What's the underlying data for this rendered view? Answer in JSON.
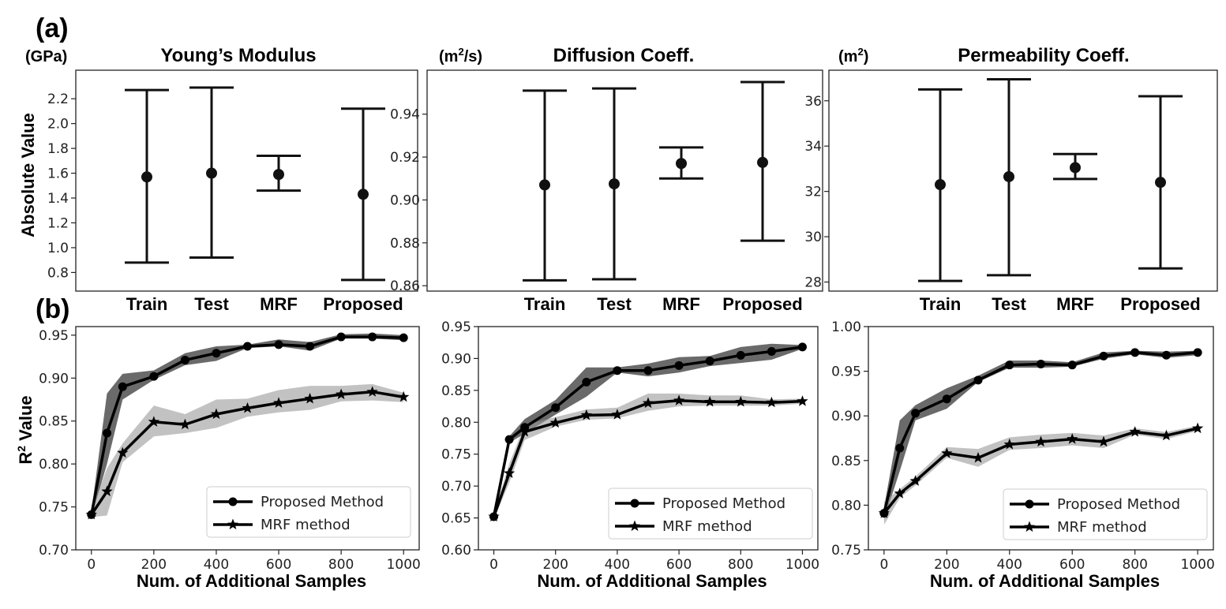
{
  "panel_labels": {
    "a": "(a)",
    "b": "(b)"
  },
  "ylabels": {
    "top": "Absolute Value",
    "bottom_prefix": "R",
    "bottom_sup": "2",
    "bottom_suffix": " Value"
  },
  "legend": {
    "proposed": "Proposed Method",
    "mrf": "MRF method"
  },
  "chart_data": [
    {
      "type": "errorbar",
      "title": "Young’s Modulus",
      "unit_main": "(GPa)",
      "unit_sup": "",
      "categories": [
        "Train",
        "Test",
        "MRF",
        "Proposed"
      ],
      "means": [
        1.57,
        1.6,
        1.59,
        1.43
      ],
      "lows": [
        0.88,
        0.92,
        1.46,
        0.74
      ],
      "highs": [
        2.27,
        2.29,
        1.74,
        2.12
      ],
      "ylim": [
        0.65,
        2.43
      ],
      "yticks": [
        0.8,
        1.0,
        1.2,
        1.4,
        1.6,
        1.8,
        2.0,
        2.2
      ],
      "ylabel": "Absolute Value"
    },
    {
      "type": "errorbar",
      "title": "Diffusion Coeff.",
      "unit_main": "(m",
      "unit_sup": "2",
      "unit_tail": "/s)",
      "categories": [
        "Train",
        "Test",
        "MRF",
        "Proposed"
      ],
      "means": [
        0.907,
        0.9075,
        0.917,
        0.9175
      ],
      "lows": [
        0.8625,
        0.863,
        0.91,
        0.881
      ],
      "highs": [
        0.951,
        0.952,
        0.9245,
        0.955
      ],
      "ylim": [
        0.8575,
        0.9605
      ],
      "yticks": [
        0.86,
        0.88,
        0.9,
        0.92,
        0.94
      ]
    },
    {
      "type": "errorbar",
      "title": "Permeability Coeff.",
      "unit_main": "(m",
      "unit_sup": "2",
      "unit_tail": ")",
      "categories": [
        "Train",
        "Test",
        "MRF",
        "Proposed"
      ],
      "means": [
        32.3,
        32.65,
        33.05,
        32.4
      ],
      "lows": [
        28.05,
        28.3,
        32.55,
        28.6
      ],
      "highs": [
        36.5,
        36.95,
        33.65,
        36.2
      ],
      "ylim": [
        27.6,
        37.35
      ],
      "yticks": [
        28,
        30,
        32,
        34,
        36
      ]
    },
    {
      "type": "line",
      "xlabel": "Num. of Additional Samples",
      "ylabel": "R2 Value",
      "x": [
        0,
        50,
        100,
        200,
        300,
        400,
        500,
        600,
        700,
        800,
        900,
        1000
      ],
      "xlim": [
        -50,
        1050
      ],
      "ylim": [
        0.7,
        0.96
      ],
      "xticks": [
        0,
        200,
        400,
        600,
        800,
        1000
      ],
      "yticks": [
        0.7,
        0.75,
        0.8,
        0.85,
        0.9,
        0.95
      ],
      "series": [
        {
          "name": "Proposed Method",
          "values": [
            0.741,
            0.836,
            0.89,
            0.902,
            0.921,
            0.929,
            0.937,
            0.939,
            0.937,
            0.948,
            0.948,
            0.947
          ],
          "lower": [
            0.738,
            0.8,
            0.875,
            0.898,
            0.915,
            0.92,
            0.935,
            0.937,
            0.932,
            0.946,
            0.946,
            0.944
          ],
          "upper": [
            0.745,
            0.882,
            0.905,
            0.909,
            0.929,
            0.937,
            0.939,
            0.945,
            0.942,
            0.951,
            0.952,
            0.95
          ]
        },
        {
          "name": "MRF method",
          "values": [
            0.741,
            0.768,
            0.813,
            0.849,
            0.846,
            0.858,
            0.865,
            0.871,
            0.876,
            0.881,
            0.884,
            0.878
          ],
          "lower": [
            0.738,
            0.74,
            0.802,
            0.832,
            0.836,
            0.842,
            0.855,
            0.86,
            0.863,
            0.873,
            0.874,
            0.872
          ],
          "upper": [
            0.745,
            0.795,
            0.824,
            0.868,
            0.858,
            0.875,
            0.876,
            0.886,
            0.891,
            0.891,
            0.893,
            0.883
          ]
        }
      ]
    },
    {
      "type": "line",
      "xlabel": "Num. of Additional Samples",
      "x": [
        0,
        50,
        100,
        200,
        300,
        400,
        500,
        600,
        700,
        800,
        900,
        1000
      ],
      "xlim": [
        -50,
        1050
      ],
      "ylim": [
        0.6,
        0.95
      ],
      "xticks": [
        0,
        200,
        400,
        600,
        800,
        1000
      ],
      "yticks": [
        0.6,
        0.65,
        0.7,
        0.75,
        0.8,
        0.85,
        0.9,
        0.95
      ],
      "series": [
        {
          "name": "Proposed Method",
          "values": [
            0.652,
            0.773,
            0.792,
            0.823,
            0.863,
            0.881,
            0.881,
            0.889,
            0.896,
            0.905,
            0.911,
            0.918
          ],
          "lower": [
            0.648,
            0.768,
            0.782,
            0.812,
            0.84,
            0.878,
            0.872,
            0.878,
            0.888,
            0.893,
            0.898,
            0.915
          ],
          "upper": [
            0.656,
            0.778,
            0.805,
            0.835,
            0.886,
            0.886,
            0.892,
            0.902,
            0.904,
            0.918,
            0.923,
            0.921
          ]
        },
        {
          "name": "MRF method",
          "values": [
            0.652,
            0.72,
            0.785,
            0.799,
            0.811,
            0.812,
            0.83,
            0.834,
            0.832,
            0.832,
            0.831,
            0.833
          ],
          "lower": [
            0.648,
            0.705,
            0.772,
            0.793,
            0.804,
            0.806,
            0.818,
            0.825,
            0.826,
            0.826,
            0.826,
            0.829
          ],
          "upper": [
            0.656,
            0.735,
            0.796,
            0.808,
            0.82,
            0.823,
            0.845,
            0.845,
            0.842,
            0.842,
            0.836,
            0.837
          ]
        }
      ]
    },
    {
      "type": "line",
      "xlabel": "Num. of Additional Samples",
      "x": [
        0,
        50,
        100,
        200,
        300,
        400,
        500,
        600,
        700,
        800,
        900,
        1000
      ],
      "xlim": [
        -50,
        1050
      ],
      "ylim": [
        0.75,
        1.0
      ],
      "xticks": [
        0,
        200,
        400,
        600,
        800,
        1000
      ],
      "yticks": [
        0.75,
        0.8,
        0.85,
        0.9,
        0.95,
        1.0
      ],
      "series": [
        {
          "name": "Proposed Method",
          "values": [
            0.791,
            0.864,
            0.903,
            0.919,
            0.94,
            0.957,
            0.958,
            0.957,
            0.967,
            0.971,
            0.968,
            0.971
          ],
          "lower": [
            0.784,
            0.838,
            0.895,
            0.908,
            0.938,
            0.954,
            0.954,
            0.955,
            0.964,
            0.969,
            0.965,
            0.968
          ],
          "upper": [
            0.798,
            0.895,
            0.912,
            0.931,
            0.945,
            0.962,
            0.962,
            0.96,
            0.971,
            0.973,
            0.972,
            0.973
          ]
        },
        {
          "name": "MRF method",
          "values": [
            0.791,
            0.813,
            0.827,
            0.858,
            0.853,
            0.868,
            0.871,
            0.874,
            0.871,
            0.882,
            0.878,
            0.886
          ],
          "lower": [
            0.778,
            0.808,
            0.822,
            0.853,
            0.843,
            0.862,
            0.864,
            0.867,
            0.864,
            0.879,
            0.874,
            0.883
          ],
          "upper": [
            0.804,
            0.818,
            0.832,
            0.865,
            0.863,
            0.876,
            0.879,
            0.881,
            0.878,
            0.886,
            0.882,
            0.889
          ]
        }
      ]
    }
  ]
}
